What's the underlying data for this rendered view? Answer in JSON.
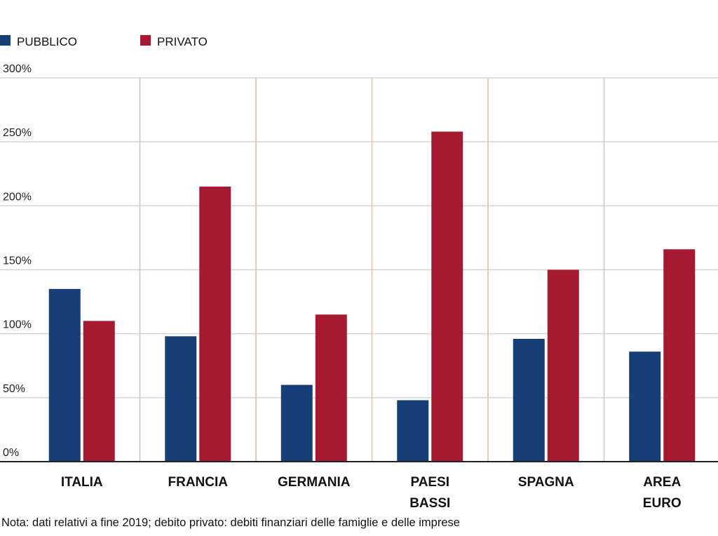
{
  "chart_data": {
    "type": "bar",
    "categories": [
      [
        "ITALIA"
      ],
      [
        "FRANCIA"
      ],
      [
        "GERMANIA"
      ],
      [
        "PAESI",
        "BASSI"
      ],
      [
        "SPAGNA"
      ],
      [
        "AREA",
        "EURO"
      ]
    ],
    "series": [
      {
        "name": "PUBBLICO",
        "color": "#163f78",
        "values": [
          135,
          98,
          60,
          48,
          96,
          86
        ]
      },
      {
        "name": "PRIVATO",
        "color": "#a51a30",
        "values": [
          110,
          215,
          115,
          258,
          150,
          166
        ]
      }
    ],
    "yticks": [
      "0%",
      "50%",
      "100%",
      "150%",
      "200%",
      "250%",
      "300%"
    ],
    "ylim": [
      0,
      300
    ],
    "title": "",
    "xlabel": "",
    "ylabel": "",
    "grid": true,
    "legend_position": "top-left"
  },
  "note": "Nota: dati relativi a fine 2019; debito privato: debiti finanziari delle famiglie e delle imprese"
}
